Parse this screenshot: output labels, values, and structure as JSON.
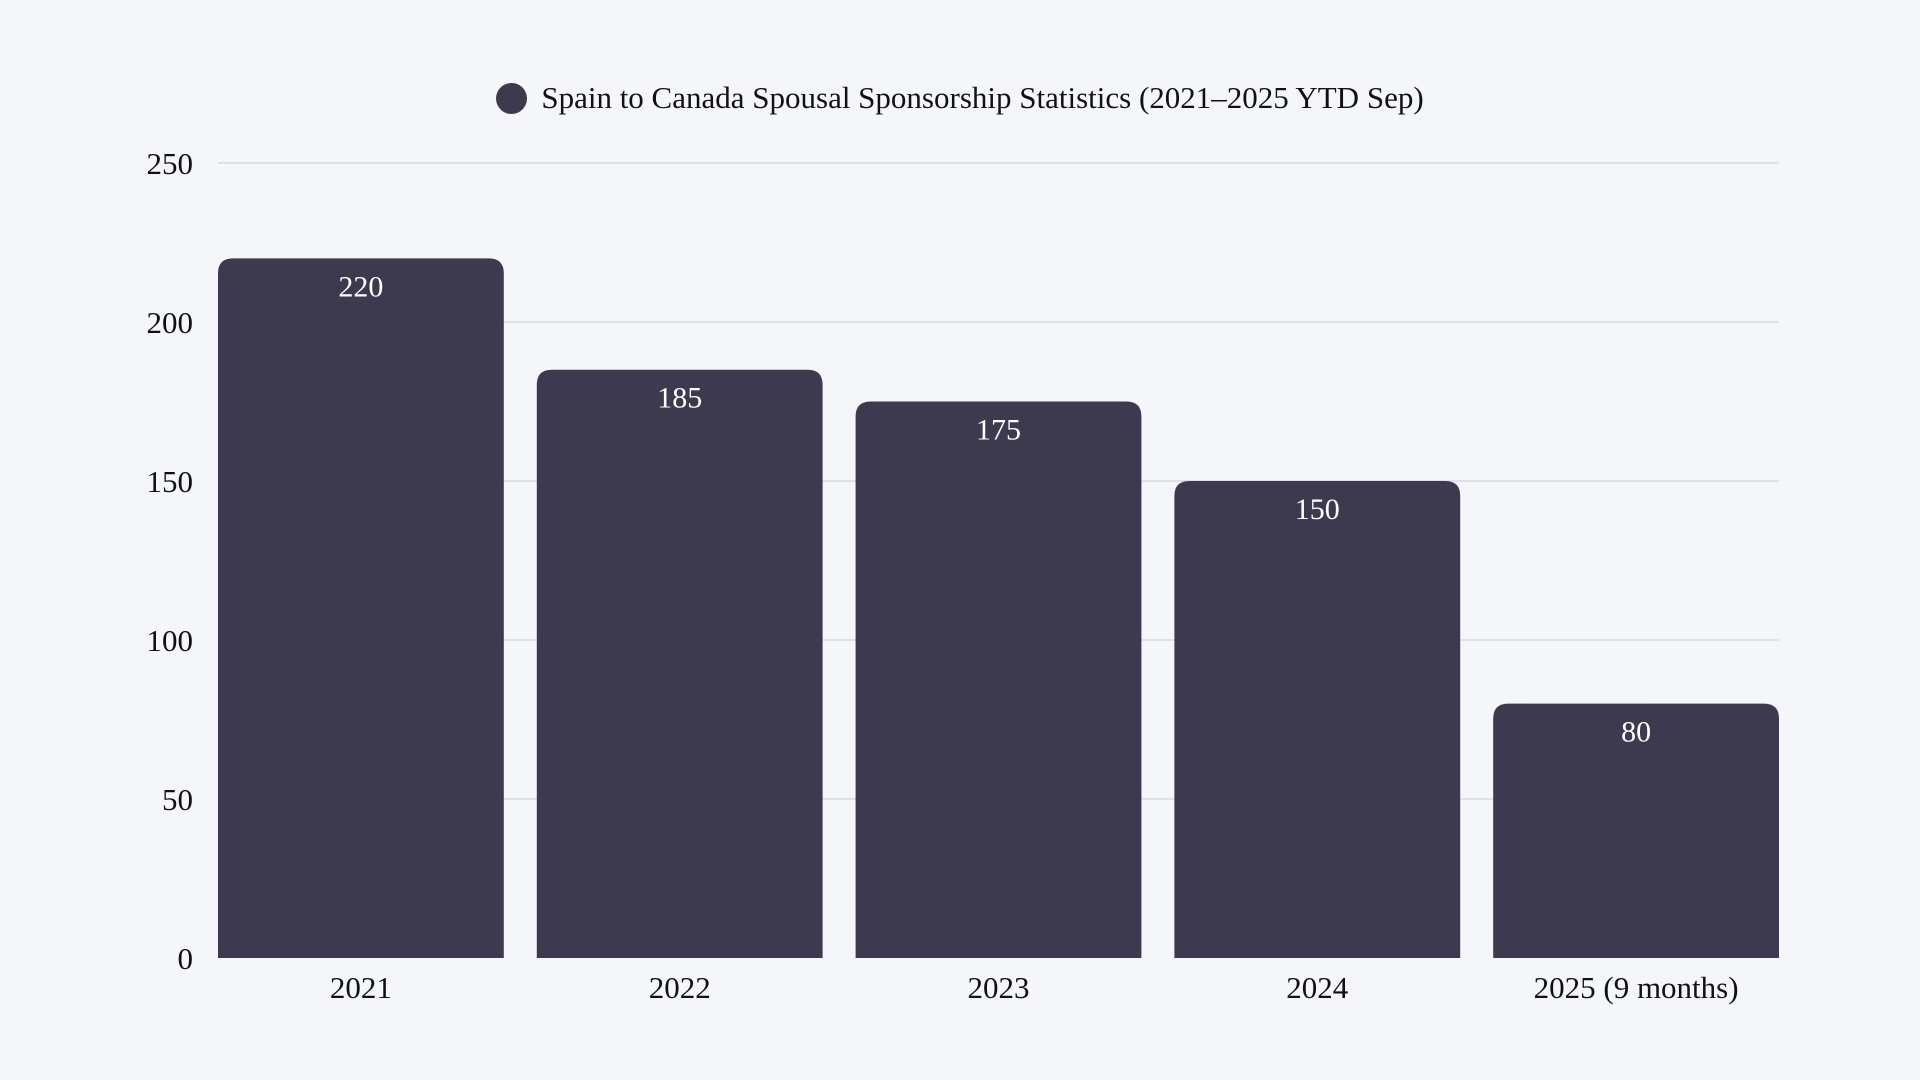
{
  "chart_data": {
    "type": "bar",
    "title": "Spain to Canada Spousal Sponsorship Statistics (2021–2025 YTD Sep)",
    "categories": [
      "2021",
      "2022",
      "2023",
      "2024",
      "2025 (9 months)"
    ],
    "values": [
      220,
      185,
      175,
      150,
      80
    ],
    "ylim": [
      0,
      250
    ],
    "yticks": [
      0,
      50,
      100,
      150,
      200,
      250
    ],
    "xlabel": "",
    "ylabel": "",
    "grid": true,
    "legend_placement": "top-center",
    "data_labels": true,
    "colors": {
      "bar": "#3d3a50",
      "background": "#f4f6f9",
      "grid": "#d9dadf",
      "label": "#ffffff"
    }
  }
}
